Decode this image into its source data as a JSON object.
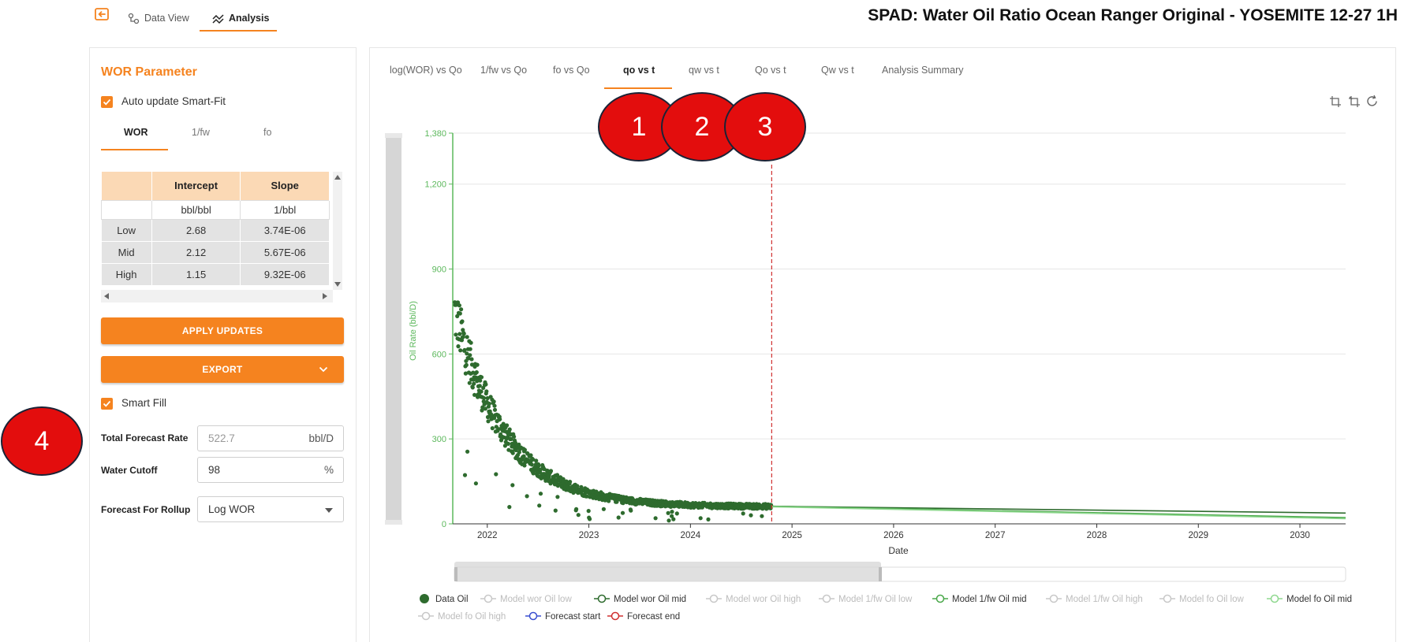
{
  "app": {
    "title": "SPAD: Water Oil Ratio Ocean Ranger Original - YOSEMITE 12-27 1H",
    "nav_tabs": [
      {
        "label": "Data View",
        "icon": "data-view-icon"
      },
      {
        "label": "Analysis",
        "icon": "analysis-icon"
      }
    ],
    "home_icon": "back-to-home-icon"
  },
  "wor_panel": {
    "title": "WOR Parameter",
    "auto_update_label": "Auto update Smart-Fit",
    "auto_update_checked": true,
    "sub_tabs": [
      "WOR",
      "1/fw",
      "fo"
    ],
    "active_sub_tab": "WOR",
    "table": {
      "headers": [
        "",
        "Intercept",
        "Slope"
      ],
      "units": [
        "",
        "bbl/bbl",
        "1/bbl"
      ],
      "rows": [
        [
          "Low",
          "2.68",
          "3.74E-06"
        ],
        [
          "Mid",
          "2.12",
          "5.67E-06"
        ],
        [
          "High",
          "1.15",
          "9.32E-06"
        ]
      ]
    },
    "apply_button": "APPLY UPDATES",
    "export_button": "EXPORT",
    "smart_fill_label": "Smart Fill",
    "smart_fill_checked": true,
    "total_forecast_rate": {
      "label": "Total Forecast Rate",
      "placeholder": "522.7",
      "unit": "bbl/D"
    },
    "water_cutoff": {
      "label": "Water Cutoff",
      "value": "98",
      "unit": "%"
    },
    "forecast_rollup": {
      "label": "Forecast For Rollup",
      "value": "Log WOR"
    }
  },
  "chart_tabs": [
    "log(WOR) vs Qo",
    "1/fw vs Qo",
    "fo vs Qo",
    "qo vs t",
    "qw vs t",
    "Qo vs t",
    "Qw vs t",
    "Analysis Summary"
  ],
  "active_chart_tab": "qo vs t",
  "callouts": [
    "1",
    "2",
    "3",
    "4"
  ],
  "colors": {
    "accent": "#f5831f",
    "callout": "#e30d0d",
    "data_oil": "#2e6b2e",
    "axis_green": "#5cb85c",
    "forecast_line": "#d03030"
  },
  "chart_data": {
    "type": "scatter",
    "title": "",
    "xlabel": "Date",
    "ylabel": "Oil Rate (bbl/D)",
    "x_ticks": [
      "2022",
      "2023",
      "2024",
      "2025",
      "2026",
      "2027",
      "2028",
      "2029",
      "2030"
    ],
    "y_ticks": [
      0,
      300,
      600,
      900,
      1200,
      1380
    ],
    "y_tick_labels": [
      "0",
      "300",
      "600",
      "900",
      "1,200",
      "1,380"
    ],
    "xlim": [
      2021.66,
      2030.45
    ],
    "ylim": [
      0,
      1380
    ],
    "forecast_start": 2024.8,
    "series": [
      {
        "name": "Data Oil",
        "kind": "scatter",
        "decline": {
          "q0": 750,
          "d": 2.0,
          "floor": 60,
          "x0": 2021.68,
          "x_end": 2024.8,
          "count": 900
        }
      },
      {
        "name": "Model wor Oil mid",
        "kind": "line",
        "x": [
          2024.8,
          2030.45
        ],
        "y": [
          62,
          38
        ]
      },
      {
        "name": "Model 1/fw Oil mid",
        "kind": "line",
        "x": [
          2024.8,
          2030.45
        ],
        "y": [
          62,
          22
        ]
      },
      {
        "name": "Model fo Oil mid",
        "kind": "line",
        "x": [
          2024.8,
          2030.45
        ],
        "y": [
          60,
          18
        ]
      }
    ],
    "legend": [
      {
        "label": "Data Oil",
        "active": true,
        "color": "#2e6b2e",
        "kind": "dot"
      },
      {
        "label": "Model wor Oil low",
        "active": false,
        "color": "#bbbbbb",
        "kind": "ring"
      },
      {
        "label": "Model wor Oil mid",
        "active": true,
        "color": "#2e6b2e",
        "kind": "ring"
      },
      {
        "label": "Model wor Oil high",
        "active": false,
        "color": "#bbbbbb",
        "kind": "ring"
      },
      {
        "label": "Model 1/fw Oil low",
        "active": false,
        "color": "#bbbbbb",
        "kind": "ring"
      },
      {
        "label": "Model 1/fw Oil mid",
        "active": true,
        "color": "#4aa84a",
        "kind": "ring"
      },
      {
        "label": "Model 1/fw Oil high",
        "active": false,
        "color": "#bbbbbb",
        "kind": "ring"
      },
      {
        "label": "Model fo Oil low",
        "active": false,
        "color": "#bbbbbb",
        "kind": "ring"
      },
      {
        "label": "Model fo Oil mid",
        "active": true,
        "color": "#8fd88f",
        "kind": "ring"
      },
      {
        "label": "Model fo Oil high",
        "active": false,
        "color": "#bbbbbb",
        "kind": "ring"
      },
      {
        "label": "Forecast start",
        "active": true,
        "color": "#3a4fd0",
        "kind": "ring"
      },
      {
        "label": "Forecast end",
        "active": true,
        "color": "#d03030",
        "kind": "ring"
      }
    ],
    "legend_placement": "bottom"
  }
}
